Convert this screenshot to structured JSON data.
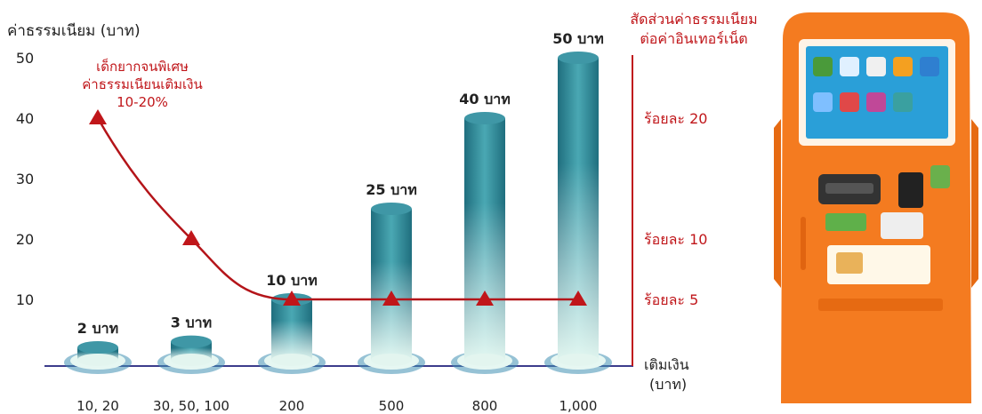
{
  "chart_data": {
    "type": "bar",
    "ylabel": "ค่าธรรมเนียม (บาท)",
    "y2label_line1": "สัดส่วนค่าธรรมเนียม",
    "y2label_line2": "ต่อค่าอินเทอร์เน็ต",
    "xlabel_line1": "เติมเงิน",
    "xlabel_line2": "(บาท)",
    "ylim": [
      0,
      50
    ],
    "yticks": [
      10,
      20,
      30,
      40,
      50
    ],
    "right_ticks": [
      "ร้อยละ 20",
      "ร้อยละ 10",
      "ร้อยละ 5"
    ],
    "right_tick_values": [
      20,
      10,
      5
    ],
    "categories": [
      "10, 20",
      "30, 50, 100",
      "200",
      "500",
      "800",
      "1,000"
    ],
    "values": [
      2,
      3,
      10,
      25,
      40,
      50
    ],
    "bar_labels": [
      "2 บาท",
      "3 บาท",
      "10 บาท",
      "25 บาท",
      "40 บาท",
      "50 บาท"
    ],
    "line_series": [
      {
        "values": [
          20,
          10,
          5,
          5,
          5,
          5
        ]
      }
    ],
    "annotation": [
      "เด็กยากจนพิเศษ",
      "ค่าธรรมเนียนเติมเงิน",
      "10-20%"
    ],
    "colors": {
      "bar_top": "#3f97a6",
      "bar_body": "#2e8696",
      "bar_light": "#e6f7f2",
      "line": "#b41419",
      "marker": "#c0161a",
      "axis": "#3c3c8c",
      "annotation": "#c0161a",
      "text": "#222222"
    }
  },
  "kiosk": {
    "screen_icons": [
      "game-icon",
      "phone-icon",
      "b-icon",
      "tv-icon",
      "document-icon",
      "puzzle-icon",
      "gift-icon",
      "photo-icon",
      "card-icon"
    ],
    "body_color": "#f47b20",
    "screen_color": "#2a9fd8"
  }
}
